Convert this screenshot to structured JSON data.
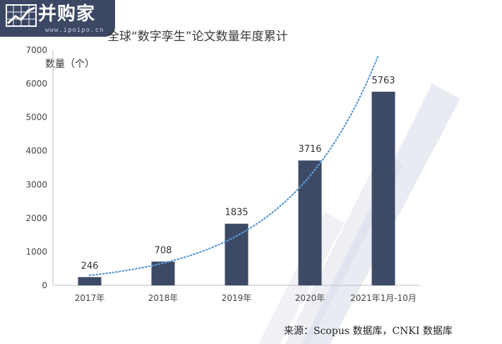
{
  "logo": {
    "text": "并购家",
    "url": "www.ipoipo.cn"
  },
  "colors": {
    "bar": "#3d4a66",
    "trend": "#5a9bd4",
    "axis": "#bfbfbf",
    "logo_bg": "#3b4763"
  },
  "source": "来源：Scopus 数据库，CNKI 数据库",
  "chart_data": {
    "type": "bar",
    "title": "全球“数字孪生”论文数量年度累计",
    "ylabel": "数量（个）",
    "xlabel": "",
    "categories": [
      "2017年",
      "2018年",
      "2019年",
      "2020年",
      "2021年1月-10月"
    ],
    "values": [
      246,
      708,
      1835,
      3716,
      5763
    ],
    "data_labels": [
      "246",
      "708",
      "1835",
      "3716",
      "5763"
    ],
    "ylim": [
      0,
      7000
    ],
    "yticks": [
      0,
      1000,
      2000,
      3000,
      4000,
      5000,
      6000,
      7000
    ],
    "trendline": {
      "type": "exponential",
      "style": "dotted"
    },
    "grid": false,
    "legend": "none"
  }
}
